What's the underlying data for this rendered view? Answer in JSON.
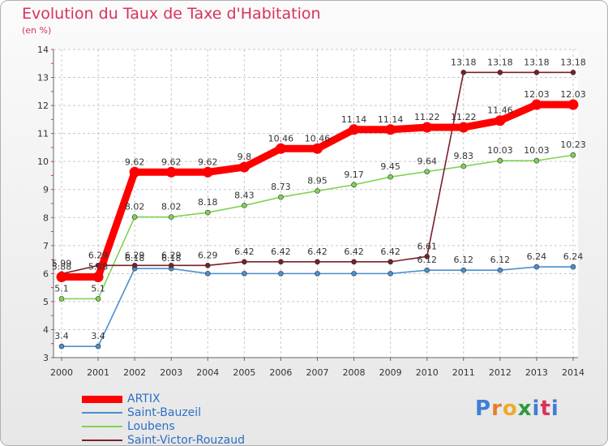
{
  "title": "Evolution du Taux de Taxe d'Habitation",
  "unit_label": "(en %)",
  "logo": {
    "letters": [
      "P",
      "r",
      "o",
      "x",
      "i",
      "t",
      "i"
    ],
    "colors": [
      "#3d7fd6",
      "#e77e2b",
      "#f0a92d",
      "#2d9a3e",
      "#3d7fd6",
      "#d8325a",
      "#3d7fd6"
    ]
  },
  "chart_data": {
    "type": "line",
    "title": "Evolution du Taux de Taxe d'Habitation",
    "ylabel": "(en %)",
    "x": [
      "2000",
      "2001",
      "2002",
      "2003",
      "2004",
      "2005",
      "2006",
      "2007",
      "2008",
      "2009",
      "2010",
      "2011",
      "2012",
      "2013",
      "2014"
    ],
    "ylim": [
      3,
      14
    ],
    "yticks": [
      "3",
      "4",
      "5",
      "6",
      "7",
      "8",
      "9",
      "10",
      "11",
      "12",
      "13",
      "14"
    ],
    "grid": "horizontal",
    "legend_position": "bottom-left",
    "series": [
      {
        "name": "ARTIX",
        "color": "#ff0000",
        "values": [
          5.88,
          5.88,
          9.62,
          9.62,
          9.62,
          9.8,
          10.46,
          10.46,
          11.14,
          11.14,
          11.22,
          11.22,
          11.46,
          12.03,
          12.03
        ],
        "labels": [
          "5.88",
          "5.88",
          "9.62",
          "9.62",
          "9.62",
          "9.8",
          "10.46",
          "10.46",
          "11.14",
          "11.14",
          "11.22",
          "11.22",
          "11.46",
          "12.03",
          "12.03"
        ]
      },
      {
        "name": "Saint-Bauzeil",
        "color": "#4a8fcf",
        "values": [
          3.4,
          3.4,
          6.18,
          6.18,
          6.0,
          6.0,
          6.0,
          6.0,
          6.0,
          6.0,
          6.12,
          6.12,
          6.12,
          6.24,
          6.24
        ],
        "labels": [
          "3.4",
          "3.4",
          "6.18",
          "6.18",
          "",
          "",
          "",
          "",
          "",
          "",
          "6.12",
          "6.12",
          "6.12",
          "6.24",
          "6.24"
        ]
      },
      {
        "name": "Loubens",
        "color": "#7fd352",
        "values": [
          5.1,
          5.1,
          8.02,
          8.02,
          8.18,
          8.43,
          8.73,
          8.95,
          9.17,
          9.45,
          9.64,
          9.83,
          10.03,
          10.03,
          10.23
        ],
        "labels": [
          "5.1",
          "5.1",
          "8.02",
          "8.02",
          "8.18",
          "8.43",
          "8.73",
          "8.95",
          "9.17",
          "9.45",
          "9.64",
          "9.83",
          "10.03",
          "10.03",
          "10.23"
        ]
      },
      {
        "name": "Saint-Victor-Rouzaud",
        "color": "#7a1f2b",
        "values": [
          5.99,
          6.29,
          6.29,
          6.29,
          6.29,
          6.42,
          6.42,
          6.42,
          6.42,
          6.42,
          6.61,
          13.18,
          13.18,
          13.18,
          13.18
        ],
        "labels": [
          "5.99",
          "6.29",
          "6.29",
          "6.29",
          "6.29",
          "6.42",
          "6.42",
          "6.42",
          "6.42",
          "6.42",
          "6.61",
          "13.18",
          "13.18",
          "13.18",
          "13.18"
        ]
      }
    ]
  }
}
